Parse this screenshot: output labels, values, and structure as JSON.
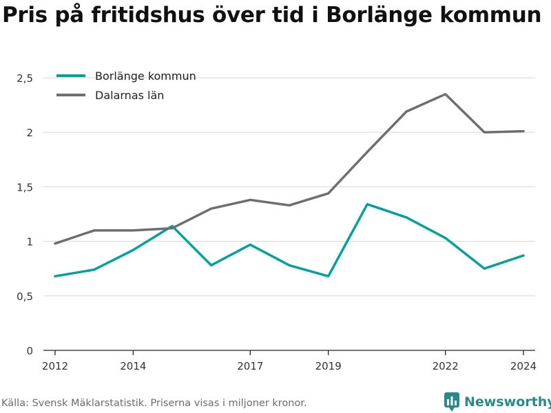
{
  "title": "Pris på fritidshus över tid i Borlänge kommun",
  "footer": {
    "source": "Källa: Svensk Mäklarstatistik. Priserna visas i miljoner kronor.",
    "brand": "Newsworthy"
  },
  "colors": {
    "Borlänge kommun": "#00a19a",
    "Dalarnas län": "#6d6d72",
    "grid": "#dcdcdc",
    "axis": "#222222",
    "brand": "#2a8a86"
  },
  "chart_data": {
    "type": "line",
    "x": [
      2012,
      2013,
      2014,
      2015,
      2016,
      2017,
      2018,
      2019,
      2020,
      2021,
      2022,
      2023,
      2024
    ],
    "x_tick_values": [
      2012,
      2014,
      2017,
      2019,
      2022,
      2024
    ],
    "x_tick_labels": [
      "2012",
      "2014",
      "2017",
      "2019",
      "2022",
      "2024"
    ],
    "y_tick_values": [
      0,
      0.5,
      1,
      1.5,
      2,
      2.5
    ],
    "y_tick_labels": [
      "0",
      "0,5",
      "1",
      "1,5",
      "2",
      "2,5"
    ],
    "ylim": [
      0,
      2.5
    ],
    "xlim": [
      2011.7,
      2024.3
    ],
    "grid": true,
    "legend_position": "top-left",
    "series": [
      {
        "name": "Borlänge kommun",
        "values": [
          0.68,
          0.74,
          0.92,
          1.14,
          0.78,
          0.97,
          0.78,
          0.68,
          1.34,
          1.22,
          1.03,
          0.75,
          0.87
        ]
      },
      {
        "name": "Dalarnas län",
        "values": [
          0.98,
          1.1,
          1.1,
          1.12,
          1.3,
          1.38,
          1.33,
          1.44,
          1.82,
          2.19,
          2.35,
          2.0,
          2.01
        ]
      }
    ]
  }
}
